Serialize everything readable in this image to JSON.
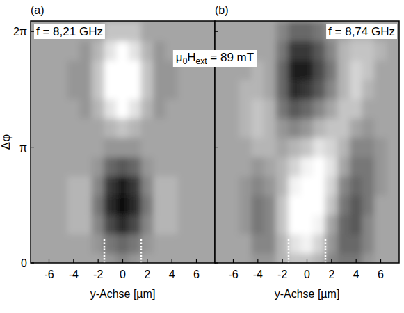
{
  "chart_data": [
    {
      "type": "heatmap",
      "panel": "(a)",
      "title": "f = 8,21 GHz",
      "x_label": "y-Achse [µm]",
      "y_label": "Δφ",
      "xlim": [
        -7.5,
        7.5
      ],
      "ylim": [
        0,
        6.57
      ],
      "xticks": [
        -6,
        -4,
        -2,
        0,
        2,
        4,
        6
      ],
      "yticks": [
        0,
        {
          "value": 3.14159,
          "label": "π"
        },
        {
          "value": 6.28319,
          "label": "2π"
        }
      ],
      "x": [
        -7,
        -6,
        -5,
        -4,
        -3,
        -2,
        -1,
        0,
        1,
        2,
        3,
        4,
        5,
        6,
        7
      ],
      "y": [
        0,
        0.5236,
        1.0472,
        1.5708,
        2.0944,
        2.618,
        3.1416,
        3.6652,
        4.1888,
        4.7124,
        5.236,
        5.7596,
        6.2832
      ],
      "zlim": [
        -10,
        10
      ],
      "cells": [
        [
          0,
          0,
          0,
          0,
          0,
          0,
          -1,
          -2,
          -1,
          0,
          0,
          0,
          0,
          0,
          0
        ],
        [
          0,
          0,
          0,
          0,
          0,
          -1,
          -3,
          -4,
          -3,
          -1,
          0,
          0,
          0,
          0,
          0
        ],
        [
          0,
          0,
          0,
          1,
          1,
          -2,
          -6,
          -8,
          -6,
          -2,
          1,
          1,
          0,
          0,
          0
        ],
        [
          0,
          0,
          0,
          1,
          1,
          -3,
          -8,
          -10,
          -8,
          -3,
          1,
          1,
          0,
          0,
          0
        ],
        [
          0,
          0,
          0,
          1,
          1,
          -2,
          -7,
          -9,
          -7,
          -2,
          1,
          1,
          0,
          0,
          0
        ],
        [
          0,
          0,
          0,
          0,
          0,
          -1,
          -4,
          -5,
          -4,
          -1,
          0,
          0,
          0,
          0,
          0
        ],
        [
          0,
          0,
          0,
          0,
          0,
          0,
          -1,
          -1,
          -1,
          0,
          0,
          0,
          0,
          0,
          0
        ],
        [
          0,
          0,
          0,
          0,
          0,
          0,
          1,
          2,
          1,
          0,
          0,
          0,
          0,
          0,
          0
        ],
        [
          0,
          0,
          0,
          0,
          -1,
          1,
          4,
          6,
          4,
          1,
          -1,
          0,
          0,
          0,
          0
        ],
        [
          0,
          0,
          0,
          -1,
          -1,
          2,
          7,
          9,
          7,
          2,
          -1,
          -1,
          0,
          0,
          0
        ],
        [
          0,
          0,
          0,
          -1,
          -1,
          2,
          7,
          9,
          7,
          2,
          -1,
          -1,
          0,
          0,
          0
        ],
        [
          0,
          0,
          0,
          0,
          -1,
          1,
          4,
          6,
          4,
          1,
          -1,
          0,
          0,
          0,
          0
        ],
        [
          0,
          0,
          0,
          0,
          0,
          0,
          2,
          2,
          2,
          0,
          0,
          0,
          0,
          0,
          0
        ]
      ],
      "vlines": [
        -1.5,
        1.5
      ],
      "vline_ylim": [
        0,
        0.65
      ]
    },
    {
      "type": "heatmap",
      "panel": "(b)",
      "title": "f = 8,74 GHz",
      "x_label": "y-Achse [µm]",
      "annotation": [
        "μ",
        "0",
        "H",
        "ext",
        " = 89 mT"
      ],
      "tick_labels": "x",
      "xlim": [
        -7.5,
        7.5
      ],
      "ylim": [
        0,
        6.57
      ],
      "xticks": [
        -6,
        -4,
        -2,
        0,
        2,
        4,
        6
      ],
      "yticks": [
        0,
        3.14159,
        6.28319
      ],
      "x": [
        -7,
        -6,
        -5,
        -4,
        -3,
        -2,
        -1,
        0,
        1,
        2,
        3,
        4,
        5,
        6,
        7
      ],
      "y": [
        0,
        0.5236,
        1.0472,
        1.5708,
        2.0944,
        2.618,
        3.1416,
        3.6652,
        4.1888,
        4.7124,
        5.236,
        5.7596,
        6.2832
      ],
      "zlim": [
        -10,
        10
      ],
      "cells": [
        [
          0,
          0,
          0,
          -1,
          -1,
          1,
          2,
          2,
          1,
          -2,
          -3,
          -3,
          -1,
          0,
          0
        ],
        [
          0,
          0,
          0,
          -2,
          -2,
          1,
          4,
          5,
          3,
          -1,
          -4,
          -4,
          -2,
          0,
          0
        ],
        [
          0,
          0,
          -1,
          -3,
          -2,
          2,
          7,
          8,
          5,
          0,
          -4,
          -5,
          -2,
          0,
          0
        ],
        [
          0,
          0,
          -1,
          -3,
          -2,
          2,
          7,
          9,
          7,
          2,
          -3,
          -5,
          -3,
          0,
          0
        ],
        [
          0,
          0,
          -1,
          -2,
          -1,
          1,
          5,
          7,
          7,
          3,
          -2,
          -4,
          -3,
          -1,
          0
        ],
        [
          0,
          0,
          0,
          -1,
          0,
          1,
          3,
          5,
          6,
          4,
          0,
          -3,
          -3,
          -1,
          0
        ],
        [
          0,
          0,
          0,
          1,
          1,
          0,
          1,
          2,
          4,
          3,
          1,
          -2,
          -2,
          -1,
          0
        ],
        [
          0,
          0,
          1,
          2,
          1,
          -1,
          -2,
          -1,
          1,
          2,
          2,
          0,
          -1,
          0,
          0
        ],
        [
          0,
          0,
          1,
          2,
          1,
          -3,
          -5,
          -4,
          -2,
          0,
          2,
          2,
          0,
          0,
          0
        ],
        [
          0,
          0,
          1,
          1,
          0,
          -4,
          -8,
          -7,
          -5,
          -2,
          1,
          3,
          1,
          0,
          0
        ],
        [
          0,
          0,
          0,
          1,
          0,
          -4,
          -9,
          -9,
          -6,
          -3,
          1,
          3,
          2,
          0,
          0
        ],
        [
          0,
          0,
          0,
          0,
          0,
          -3,
          -7,
          -7,
          -5,
          -2,
          1,
          2,
          2,
          1,
          0
        ],
        [
          0,
          0,
          0,
          0,
          0,
          -2,
          -4,
          -4,
          -3,
          -1,
          0,
          1,
          1,
          0,
          0
        ]
      ],
      "vlines": [
        -1.5,
        1.5
      ],
      "vline_ylim": [
        0,
        0.65
      ]
    }
  ]
}
